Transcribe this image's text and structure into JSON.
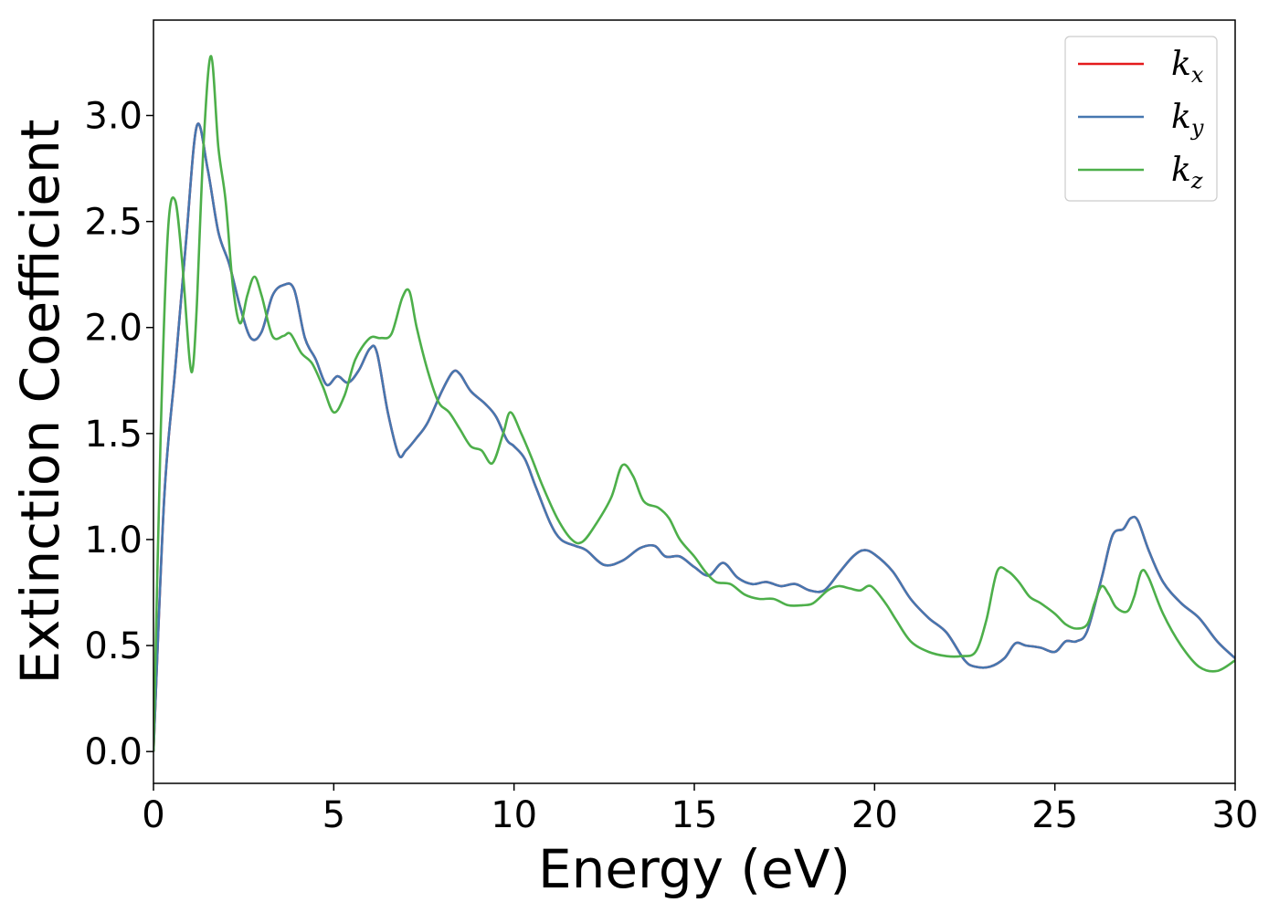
{
  "chart_data": {
    "type": "line",
    "xlabel": "Energy (eV)",
    "ylabel": "Extinction Coefficient",
    "xlim": [
      0,
      30
    ],
    "ylim": [
      -0.15,
      3.45
    ],
    "xticks": [
      0,
      5,
      10,
      15,
      20,
      25,
      30
    ],
    "xtick_labels": [
      "0",
      "5",
      "10",
      "15",
      "20",
      "25",
      "30"
    ],
    "yticks": [
      0.0,
      0.5,
      1.0,
      1.5,
      2.0,
      2.5,
      3.0
    ],
    "ytick_labels": [
      "0.0",
      "0.5",
      "1.0",
      "1.5",
      "2.0",
      "2.5",
      "3.0"
    ],
    "grid": false,
    "legend_position": "top-right",
    "series": [
      {
        "name": "k",
        "sub": "x",
        "color": "#e41a1c",
        "x": [
          0,
          0.3,
          0.6,
          0.9,
          1.2,
          1.5,
          1.8,
          2.1,
          2.4,
          2.7,
          3.0,
          3.3,
          3.6,
          3.9,
          4.2,
          4.5,
          4.8,
          5.1,
          5.4,
          5.7,
          6.0,
          6.2,
          6.5,
          6.8,
          7.0,
          7.3,
          7.6,
          8.0,
          8.3,
          8.5,
          8.8,
          9.2,
          9.5,
          9.8,
          10.0,
          10.3,
          10.6,
          11.0,
          11.3,
          11.7,
          12.0,
          12.5,
          13.0,
          13.5,
          13.9,
          14.2,
          14.6,
          15.0,
          15.4,
          15.8,
          16.2,
          16.6,
          17.0,
          17.4,
          17.8,
          18.2,
          18.6,
          19.0,
          19.4,
          19.7,
          20.0,
          20.5,
          21.0,
          21.5,
          22.0,
          22.5,
          22.8,
          23.2,
          23.6,
          23.9,
          24.2,
          24.6,
          25.0,
          25.3,
          25.6,
          25.9,
          26.3,
          26.6,
          26.9,
          27.1,
          27.3,
          27.6,
          28.0,
          28.5,
          29.0,
          29.5,
          30.0
        ],
        "y": [
          0.0,
          1.2,
          1.8,
          2.4,
          2.95,
          2.75,
          2.45,
          2.3,
          2.1,
          1.95,
          1.98,
          2.15,
          2.2,
          2.18,
          1.95,
          1.85,
          1.73,
          1.77,
          1.74,
          1.8,
          1.9,
          1.88,
          1.6,
          1.4,
          1.42,
          1.48,
          1.55,
          1.7,
          1.79,
          1.78,
          1.7,
          1.64,
          1.58,
          1.47,
          1.44,
          1.38,
          1.25,
          1.08,
          1.0,
          0.97,
          0.95,
          0.88,
          0.9,
          0.96,
          0.97,
          0.92,
          0.92,
          0.87,
          0.83,
          0.89,
          0.82,
          0.79,
          0.8,
          0.78,
          0.79,
          0.76,
          0.76,
          0.84,
          0.92,
          0.95,
          0.93,
          0.85,
          0.72,
          0.63,
          0.56,
          0.43,
          0.4,
          0.4,
          0.44,
          0.51,
          0.5,
          0.49,
          0.47,
          0.52,
          0.52,
          0.57,
          0.82,
          1.02,
          1.05,
          1.1,
          1.09,
          0.95,
          0.8,
          0.7,
          0.63,
          0.52,
          0.44
        ]
      },
      {
        "name": "k",
        "sub": "y",
        "color": "#4677b0",
        "x": [
          0,
          0.3,
          0.6,
          0.9,
          1.2,
          1.5,
          1.8,
          2.1,
          2.4,
          2.7,
          3.0,
          3.3,
          3.6,
          3.9,
          4.2,
          4.5,
          4.8,
          5.1,
          5.4,
          5.7,
          6.0,
          6.2,
          6.5,
          6.8,
          7.0,
          7.3,
          7.6,
          8.0,
          8.3,
          8.5,
          8.8,
          9.2,
          9.5,
          9.8,
          10.0,
          10.3,
          10.6,
          11.0,
          11.3,
          11.7,
          12.0,
          12.5,
          13.0,
          13.5,
          13.9,
          14.2,
          14.6,
          15.0,
          15.4,
          15.8,
          16.2,
          16.6,
          17.0,
          17.4,
          17.8,
          18.2,
          18.6,
          19.0,
          19.4,
          19.7,
          20.0,
          20.5,
          21.0,
          21.5,
          22.0,
          22.5,
          22.8,
          23.2,
          23.6,
          23.9,
          24.2,
          24.6,
          25.0,
          25.3,
          25.6,
          25.9,
          26.3,
          26.6,
          26.9,
          27.1,
          27.3,
          27.6,
          28.0,
          28.5,
          29.0,
          29.5,
          30.0
        ],
        "y": [
          0.0,
          1.2,
          1.8,
          2.4,
          2.95,
          2.75,
          2.45,
          2.3,
          2.1,
          1.95,
          1.98,
          2.15,
          2.2,
          2.18,
          1.95,
          1.85,
          1.73,
          1.77,
          1.74,
          1.8,
          1.9,
          1.88,
          1.6,
          1.4,
          1.42,
          1.48,
          1.55,
          1.7,
          1.79,
          1.78,
          1.7,
          1.64,
          1.58,
          1.47,
          1.44,
          1.38,
          1.25,
          1.08,
          1.0,
          0.97,
          0.95,
          0.88,
          0.9,
          0.96,
          0.97,
          0.92,
          0.92,
          0.87,
          0.83,
          0.89,
          0.82,
          0.79,
          0.8,
          0.78,
          0.79,
          0.76,
          0.76,
          0.84,
          0.92,
          0.95,
          0.93,
          0.85,
          0.72,
          0.63,
          0.56,
          0.43,
          0.4,
          0.4,
          0.44,
          0.51,
          0.5,
          0.49,
          0.47,
          0.52,
          0.52,
          0.57,
          0.82,
          1.02,
          1.05,
          1.1,
          1.09,
          0.95,
          0.8,
          0.7,
          0.63,
          0.52,
          0.44
        ]
      },
      {
        "name": "k",
        "sub": "z",
        "color": "#4daf4a",
        "x": [
          0,
          0.2,
          0.4,
          0.6,
          0.8,
          1.0,
          1.1,
          1.2,
          1.4,
          1.6,
          1.8,
          2.0,
          2.2,
          2.4,
          2.6,
          2.8,
          3.0,
          3.3,
          3.6,
          3.8,
          4.1,
          4.4,
          4.7,
          5.0,
          5.3,
          5.6,
          6.0,
          6.3,
          6.6,
          6.9,
          7.1,
          7.3,
          7.6,
          7.9,
          8.2,
          8.5,
          8.8,
          9.1,
          9.4,
          9.7,
          9.9,
          10.2,
          10.5,
          10.8,
          11.2,
          11.6,
          11.9,
          12.3,
          12.7,
          13.0,
          13.3,
          13.6,
          14.0,
          14.3,
          14.6,
          15.0,
          15.3,
          15.6,
          16.0,
          16.4,
          16.8,
          17.2,
          17.6,
          18.0,
          18.3,
          18.7,
          19.0,
          19.3,
          19.6,
          19.9,
          20.3,
          20.6,
          21.0,
          21.5,
          22.0,
          22.4,
          22.8,
          23.1,
          23.4,
          23.7,
          24.0,
          24.3,
          24.6,
          25.0,
          25.3,
          25.6,
          25.9,
          26.1,
          26.3,
          26.5,
          26.7,
          27.0,
          27.2,
          27.4,
          27.6,
          28.0,
          28.5,
          29.0,
          29.5,
          30.0
        ],
        "y": [
          0.0,
          1.5,
          2.45,
          2.6,
          2.3,
          1.85,
          1.82,
          2.1,
          2.9,
          3.28,
          2.85,
          2.6,
          2.2,
          2.02,
          2.15,
          2.24,
          2.15,
          1.96,
          1.96,
          1.97,
          1.88,
          1.83,
          1.72,
          1.6,
          1.68,
          1.85,
          1.95,
          1.95,
          1.97,
          2.14,
          2.17,
          2.0,
          1.8,
          1.65,
          1.6,
          1.52,
          1.44,
          1.42,
          1.36,
          1.5,
          1.6,
          1.5,
          1.38,
          1.25,
          1.1,
          1.0,
          0.99,
          1.08,
          1.2,
          1.35,
          1.3,
          1.18,
          1.15,
          1.1,
          1.0,
          0.92,
          0.85,
          0.8,
          0.79,
          0.74,
          0.72,
          0.72,
          0.69,
          0.69,
          0.7,
          0.76,
          0.78,
          0.77,
          0.76,
          0.78,
          0.7,
          0.62,
          0.52,
          0.47,
          0.45,
          0.45,
          0.47,
          0.62,
          0.85,
          0.85,
          0.8,
          0.73,
          0.7,
          0.65,
          0.6,
          0.58,
          0.6,
          0.7,
          0.78,
          0.74,
          0.68,
          0.66,
          0.73,
          0.85,
          0.82,
          0.65,
          0.5,
          0.4,
          0.38,
          0.43
        ]
      }
    ]
  }
}
